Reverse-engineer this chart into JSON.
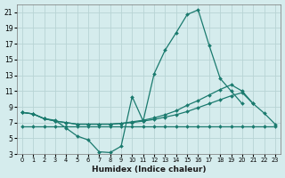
{
  "xlabel": "Humidex (Indice chaleur)",
  "xlim": [
    -0.5,
    23.5
  ],
  "ylim": [
    3,
    22
  ],
  "yticks": [
    3,
    5,
    7,
    9,
    11,
    13,
    15,
    17,
    19,
    21
  ],
  "xticks": [
    0,
    1,
    2,
    3,
    4,
    5,
    6,
    7,
    8,
    9,
    10,
    11,
    12,
    13,
    14,
    15,
    16,
    17,
    18,
    19,
    20,
    21,
    22,
    23
  ],
  "bg_color": "#d5eced",
  "grid_color": "#b8d4d4",
  "line_color": "#1a7a6e",
  "s1_x": [
    0,
    1,
    2,
    3,
    4,
    5,
    6,
    7,
    8,
    9,
    10,
    11,
    12,
    13,
    14,
    15,
    16,
    17,
    18,
    19,
    20
  ],
  "s1_y": [
    8.3,
    8.1,
    7.5,
    7.3,
    6.3,
    5.3,
    4.8,
    3.3,
    3.2,
    4.0,
    10.3,
    7.2,
    13.2,
    16.2,
    18.4,
    20.7,
    21.3,
    16.8,
    12.6,
    11.0,
    9.4
  ],
  "s2_x": [
    0,
    1,
    2,
    3,
    4,
    5,
    6,
    7,
    8,
    9,
    10,
    11,
    12,
    13,
    14,
    15,
    16,
    17,
    18,
    19,
    20,
    21
  ],
  "s2_y": [
    8.3,
    8.1,
    7.5,
    7.2,
    7.0,
    6.8,
    6.8,
    6.8,
    6.8,
    6.9,
    7.1,
    7.3,
    7.6,
    8.0,
    8.5,
    9.2,
    9.8,
    10.5,
    11.2,
    11.8,
    11.0,
    9.4
  ],
  "s3_x": [
    0,
    1,
    2,
    3,
    4,
    5,
    6,
    7,
    8,
    9,
    10,
    11,
    12,
    13,
    14,
    15,
    16,
    17,
    18,
    19,
    20,
    21,
    22,
    23
  ],
  "s3_y": [
    8.3,
    8.1,
    7.5,
    7.2,
    7.0,
    6.8,
    6.8,
    6.8,
    6.8,
    6.9,
    7.0,
    7.2,
    7.4,
    7.7,
    8.0,
    8.4,
    8.9,
    9.4,
    9.9,
    10.4,
    10.8,
    9.4,
    8.2,
    6.8
  ],
  "s4_x": [
    0,
    1,
    2,
    3,
    4,
    5,
    6,
    7,
    8,
    9,
    10,
    11,
    12,
    13,
    14,
    15,
    16,
    17,
    18,
    19,
    20,
    21,
    22,
    23
  ],
  "s4_y": [
    6.5,
    6.5,
    6.5,
    6.5,
    6.5,
    6.5,
    6.5,
    6.5,
    6.5,
    6.5,
    6.5,
    6.5,
    6.5,
    6.5,
    6.5,
    6.5,
    6.5,
    6.5,
    6.5,
    6.5,
    6.5,
    6.5,
    6.5,
    6.5
  ]
}
